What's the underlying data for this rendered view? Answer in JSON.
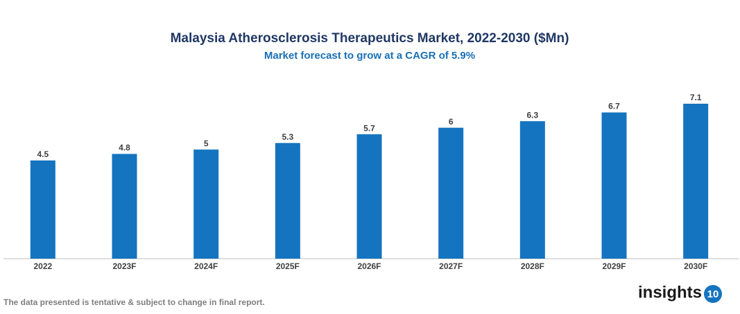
{
  "chart_data": {
    "type": "bar",
    "title": "Malaysia Atherosclerosis Therapeutics Market, 2022-2030 ($Mn)",
    "subtitle": "Market forecast to grow at a CAGR of 5.9%",
    "categories": [
      "2022",
      "2023F",
      "2024F",
      "2025F",
      "2026F",
      "2027F",
      "2028F",
      "2029F",
      "2030F"
    ],
    "values": [
      4.5,
      4.8,
      5,
      5.3,
      5.7,
      6,
      6.3,
      6.7,
      7.1
    ],
    "color": "#1474bf",
    "ylim": [
      0,
      9
    ],
    "footnote": "The data presented is tentative & subject to change in final report.",
    "logo": "insights",
    "logo_badge": "10"
  }
}
